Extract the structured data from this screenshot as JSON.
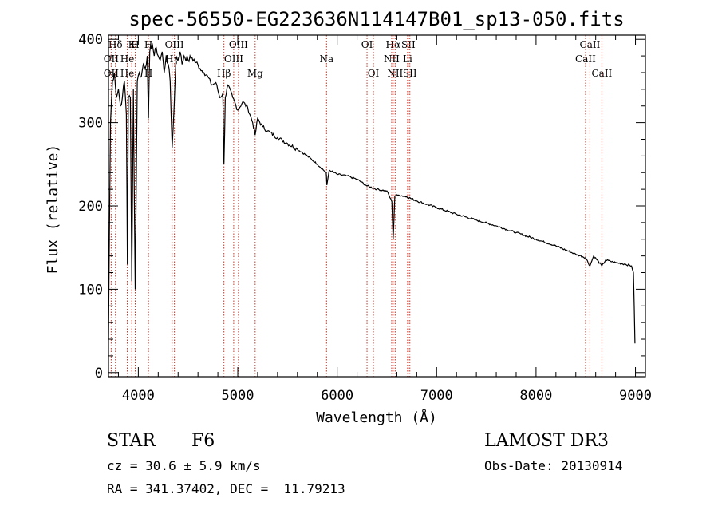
{
  "chart_data": {
    "type": "line",
    "title": "spec-56550-EG223636N114147B01_sp13-050.fits",
    "xlabel": "Wavelength (Å)",
    "ylabel": "Flux (relative)",
    "xlim": [
      3700,
      9100
    ],
    "ylim": [
      -5,
      405
    ],
    "xticks": [
      4000,
      5000,
      6000,
      7000,
      8000,
      9000
    ],
    "yticks": [
      0,
      100,
      200,
      300,
      400
    ],
    "line_markers": [
      {
        "label": "Hδ",
        "x": 3770,
        "row": 0
      },
      {
        "label": "K",
        "x": 3934,
        "row": 0
      },
      {
        "label": "H",
        "x": 3969,
        "row": 0
      },
      {
        "label": "H",
        "x": 4102,
        "row": 0
      },
      {
        "label": "OII",
        "x": 3727,
        "row": 1
      },
      {
        "label": "He",
        "x": 3889,
        "row": 1
      },
      {
        "label": "OII",
        "x": 3727,
        "row": 2
      },
      {
        "label": "He",
        "x": 3889,
        "row": 2
      },
      {
        "label": "H",
        "x": 4102,
        "row": 2
      },
      {
        "label": "OIII",
        "x": 4363,
        "row": 0
      },
      {
        "label": "Hγ",
        "x": 4340,
        "row": 1
      },
      {
        "label": "Hβ",
        "x": 4861,
        "row": 2
      },
      {
        "label": "OIII",
        "x": 4959,
        "row": 1
      },
      {
        "label": "OIII",
        "x": 5007,
        "row": 0
      },
      {
        "label": "Mg",
        "x": 5175,
        "row": 2
      },
      {
        "label": "Na",
        "x": 5893,
        "row": 1
      },
      {
        "label": "OI",
        "x": 6300,
        "row": 0
      },
      {
        "label": "OI",
        "x": 6364,
        "row": 2
      },
      {
        "label": "Hα",
        "x": 6563,
        "row": 0
      },
      {
        "label": "NII",
        "x": 6548,
        "row": 1
      },
      {
        "label": "NII",
        "x": 6583,
        "row": 2
      },
      {
        "label": "SII",
        "x": 6716,
        "row": 0
      },
      {
        "label": "Li",
        "x": 6708,
        "row": 1
      },
      {
        "label": "SII",
        "x": 6731,
        "row": 2
      },
      {
        "label": "CaII",
        "x": 8542,
        "row": 0
      },
      {
        "label": "CaII",
        "x": 8498,
        "row": 1
      },
      {
        "label": "CaII",
        "x": 8662,
        "row": 2
      }
    ],
    "series": [
      {
        "name": "flux",
        "x": [
          3700,
          3720,
          3740,
          3760,
          3780,
          3800,
          3820,
          3840,
          3860,
          3880,
          3890,
          3900,
          3920,
          3934,
          3950,
          3969,
          3990,
          4010,
          4030,
          4050,
          4070,
          4090,
          4102,
          4115,
          4140,
          4160,
          4180,
          4200,
          4220,
          4240,
          4260,
          4280,
          4300,
          4320,
          4340,
          4360,
          4380,
          4400,
          4420,
          4440,
          4460,
          4500,
          4540,
          4580,
          4620,
          4660,
          4700,
          4740,
          4780,
          4820,
          4850,
          4861,
          4875,
          4900,
          4950,
          5000,
          5050,
          5100,
          5150,
          5175,
          5200,
          5250,
          5300,
          5400,
          5500,
          5600,
          5700,
          5800,
          5890,
          5896,
          5920,
          6000,
          6100,
          6200,
          6300,
          6400,
          6500,
          6550,
          6563,
          6580,
          6620,
          6700,
          6800,
          7000,
          7200,
          7400,
          7600,
          7800,
          8000,
          8200,
          8400,
          8498,
          8542,
          8580,
          8662,
          8700,
          8800,
          8900,
          8960,
          8980,
          8995
        ],
        "y": [
          40,
          300,
          350,
          360,
          330,
          340,
          320,
          330,
          350,
          310,
          130,
          330,
          330,
          110,
          340,
          100,
          350,
          360,
          355,
          370,
          365,
          380,
          305,
          385,
          395,
          380,
          390,
          380,
          375,
          385,
          360,
          380,
          370,
          350,
          270,
          320,
          380,
          375,
          385,
          370,
          380,
          375,
          378,
          372,
          365,
          360,
          355,
          345,
          348,
          330,
          335,
          250,
          330,
          345,
          330,
          315,
          325,
          318,
          300,
          285,
          305,
          295,
          290,
          282,
          275,
          268,
          260,
          250,
          240,
          225,
          243,
          238,
          236,
          232,
          224,
          220,
          218,
          205,
          160,
          212,
          213,
          211,
          206,
          198,
          190,
          183,
          176,
          168,
          160,
          152,
          142,
          138,
          128,
          140,
          128,
          135,
          132,
          130,
          128,
          120,
          35
        ]
      }
    ]
  },
  "info": {
    "object_class": "STAR",
    "subclass": "F6",
    "cz": "cz = 30.6 ± 5.9 km/s",
    "radec": "RA = 341.37402, DEC =  11.79213",
    "survey": "LAMOST DR3",
    "obsdate": "Obs-Date: 20130914"
  }
}
